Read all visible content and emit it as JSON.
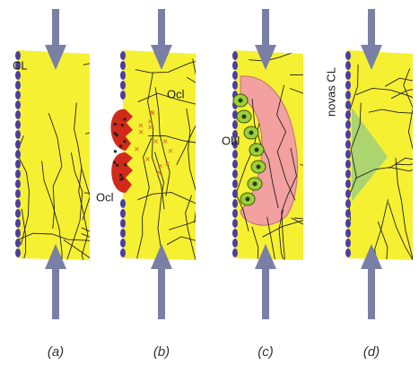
{
  "panels": [
    {
      "caption": "(a)",
      "labels": [
        "CL"
      ]
    },
    {
      "caption": "(b)",
      "labels": [
        "Ocl",
        "Ocl"
      ]
    },
    {
      "caption": "(c)",
      "labels": [
        "Obl"
      ]
    },
    {
      "caption": "(d)",
      "labels": [
        "novas CL"
      ]
    }
  ]
}
